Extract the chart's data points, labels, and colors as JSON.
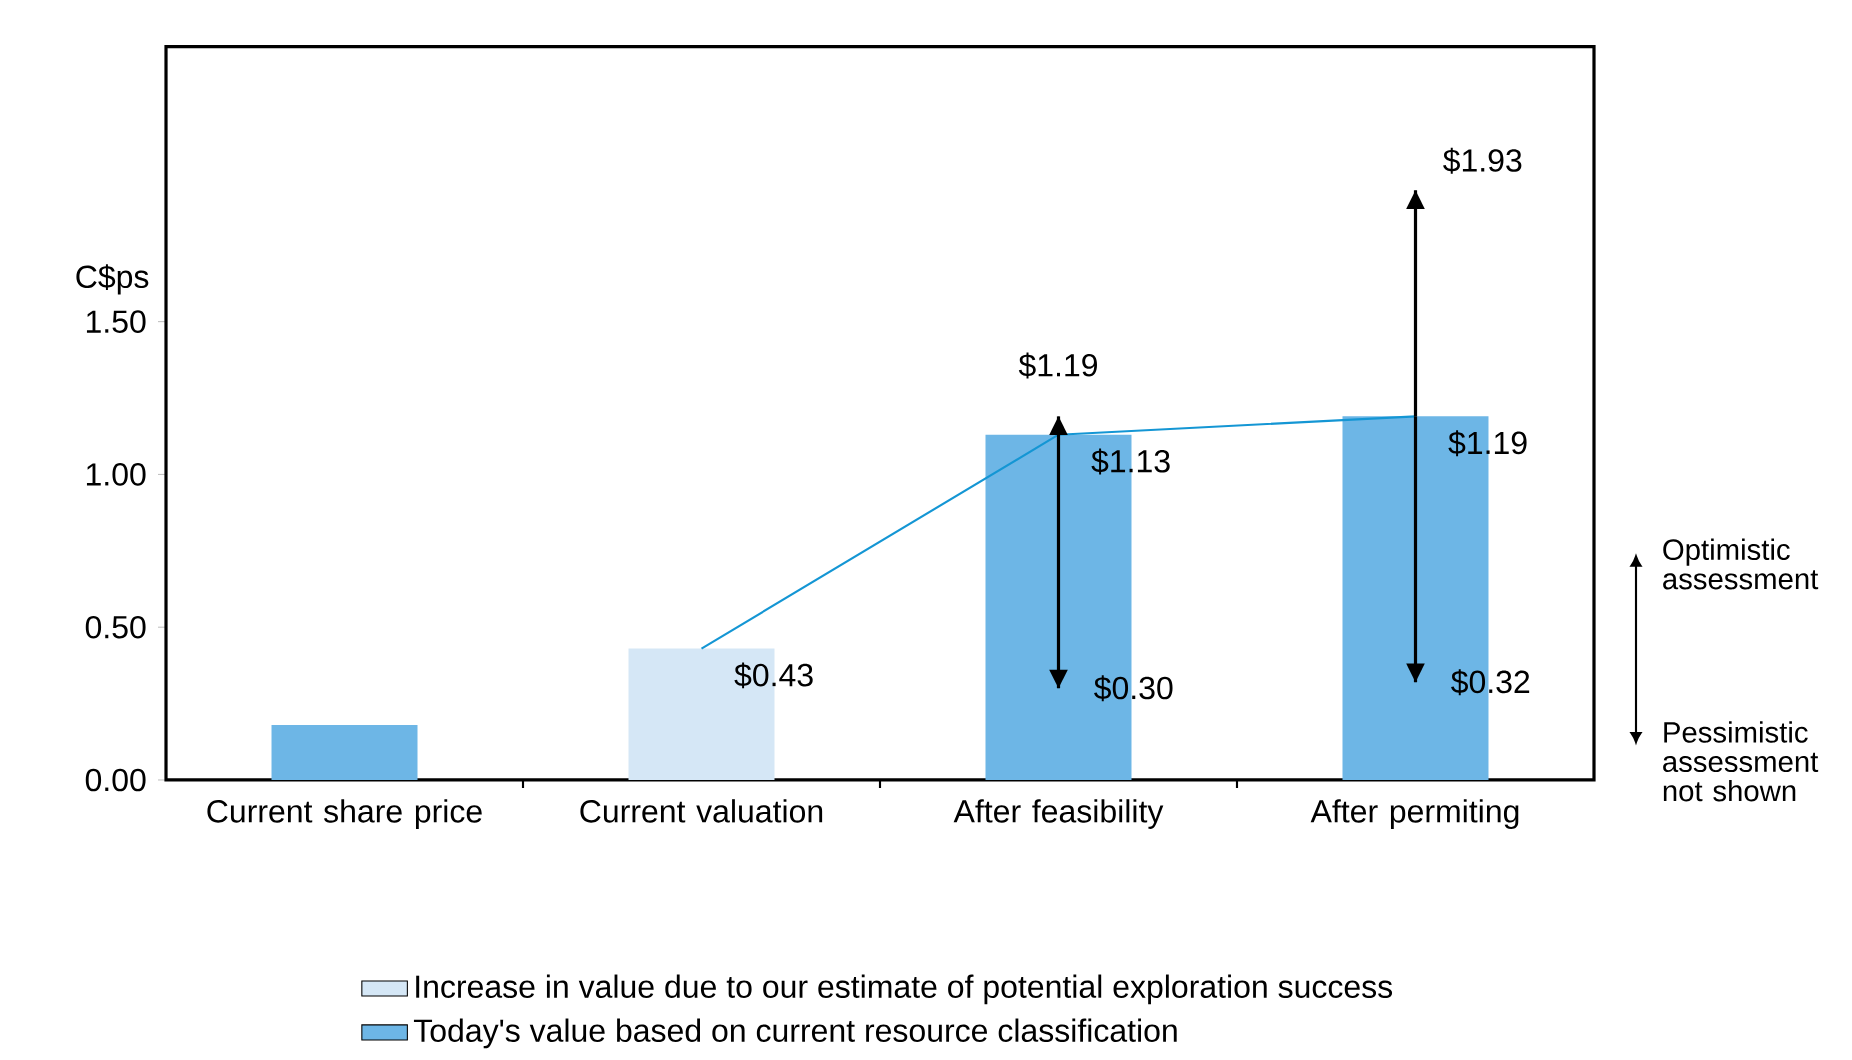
{
  "chart_data": {
    "type": "bar",
    "ylabel": "C$ps",
    "categories": [
      "Current share price",
      "Current valuation",
      "After feasibility",
      "After permiting"
    ],
    "series": [
      {
        "name": "Increase in value due to our estimate of potential exploration success",
        "color": "#d5e7f6",
        "values": [
          null,
          0.43,
          null,
          null
        ]
      },
      {
        "name": "Today's value based on current resource classification",
        "color": "#6db6e6",
        "values": [
          0.18,
          null,
          1.13,
          1.19
        ]
      },
      {
        "type": "line",
        "color": "#1496d4",
        "values": [
          null,
          0.43,
          1.13,
          1.19
        ],
        "value_labels": [
          null,
          "$0.43",
          "$1.13",
          "$1.19"
        ],
        "errors": [
          null,
          null,
          [
            0.3,
            1.19
          ],
          [
            0.32,
            1.93
          ]
        ]
      }
    ],
    "ylim": [
      0,
      2.4
    ],
    "yticks": [
      {
        "value": 0,
        "label": "0.00"
      },
      {
        "value": 0.5,
        "label": "0.50"
      },
      {
        "value": 1.0,
        "label": "1.00"
      },
      {
        "value": 1.5,
        "label": "1.50"
      }
    ],
    "annotations": [
      "$1.19",
      "$0.30",
      "$1.93",
      "$0.32",
      "Optimistic assessment",
      "Pessimistic assessment not shown"
    ],
    "legend": "bottom",
    "marker": "none",
    "line_style": "solid",
    "grid": false
  }
}
